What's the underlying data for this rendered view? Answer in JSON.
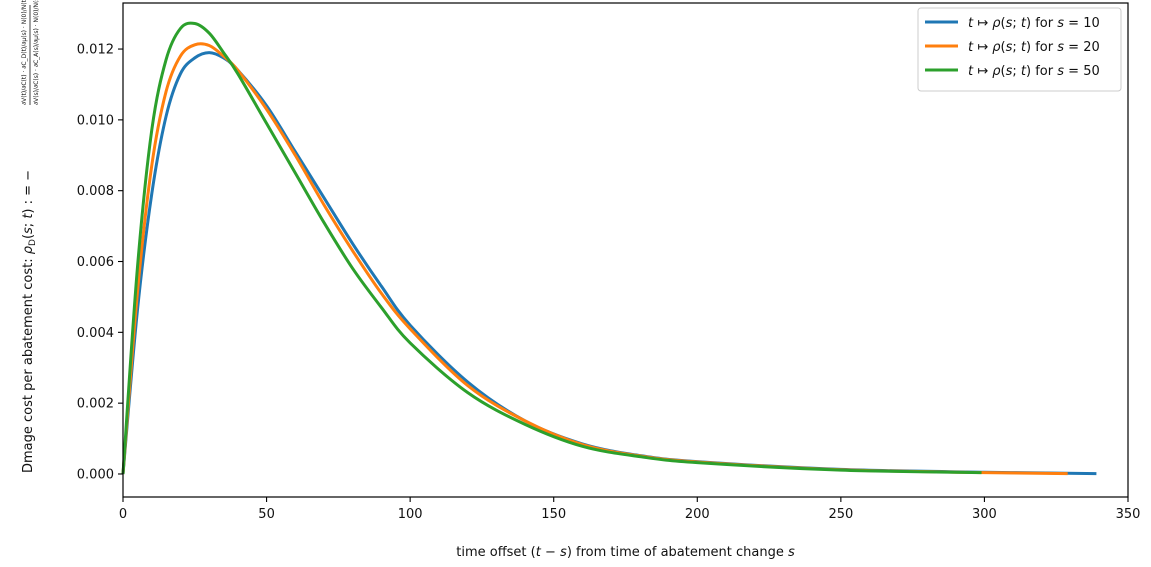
{
  "chart_data": {
    "type": "line",
    "xlabel": "time offset (t − s) from time of abatement change s",
    "ylabel": "Dmage cost per abatement cost: ρ_D(s; t) := −(∂V(t)/∂C(t) · ∂C_D(t)/∂μ(s) · N(0)/N(t)) / (∂V(s)/∂C(s) · ∂C_A(s)/∂μ(s) · N(0)/N(s))",
    "xlim": [
      0,
      350
    ],
    "ylim": [
      -0.00065,
      0.0133
    ],
    "x_ticks": [
      "0",
      "50",
      "100",
      "150",
      "200",
      "250",
      "300",
      "350"
    ],
    "y_ticks": [
      "0.000",
      "0.002",
      "0.004",
      "0.006",
      "0.008",
      "0.010",
      "0.012"
    ],
    "legend_position": "top-right",
    "grid": false,
    "series": [
      {
        "name": "t ↦ ρ(s; t) for s = 10",
        "color": "#1f77b4",
        "x": [
          0,
          5,
          10,
          15,
          20,
          25,
          30,
          35,
          40,
          50,
          60,
          70,
          80,
          90,
          100,
          120,
          140,
          160,
          180,
          200,
          250,
          300,
          339
        ],
        "y": [
          0,
          0.0046,
          0.0079,
          0.0101,
          0.0113,
          0.01175,
          0.0119,
          0.01175,
          0.0114,
          0.0104,
          0.0091,
          0.0078,
          0.0065,
          0.0053,
          0.0042,
          0.0026,
          0.0015,
          0.00085,
          0.00052,
          0.00035,
          0.00013,
          5e-05,
          1e-05
        ]
      },
      {
        "name": "t ↦ ρ(s; t) for s = 20",
        "color": "#ff7f0e",
        "x": [
          0,
          5,
          10,
          15,
          20,
          25,
          30,
          35,
          40,
          50,
          60,
          70,
          80,
          90,
          100,
          120,
          140,
          160,
          180,
          200,
          250,
          300,
          329
        ],
        "y": [
          0,
          0.0051,
          0.0087,
          0.0108,
          0.0118,
          0.01212,
          0.0121,
          0.0118,
          0.0114,
          0.0103,
          0.009,
          0.0076,
          0.0063,
          0.0051,
          0.0041,
          0.0025,
          0.0015,
          0.00083,
          0.00051,
          0.00034,
          0.00012,
          4e-05,
          1e-05
        ]
      },
      {
        "name": "t ↦ ρ(s; t) for s = 50",
        "color": "#2ca02c",
        "x": [
          0,
          5,
          10,
          15,
          20,
          25,
          30,
          35,
          40,
          50,
          60,
          70,
          80,
          90,
          100,
          120,
          140,
          160,
          180,
          200,
          250,
          299
        ],
        "y": [
          0,
          0.0058,
          0.0097,
          0.0117,
          0.01258,
          0.01272,
          0.01245,
          0.0119,
          0.0113,
          0.0099,
          0.0085,
          0.0071,
          0.0058,
          0.0047,
          0.0037,
          0.0023,
          0.0014,
          0.00078,
          0.00049,
          0.00032,
          0.00011,
          4e-05
        ]
      }
    ]
  }
}
